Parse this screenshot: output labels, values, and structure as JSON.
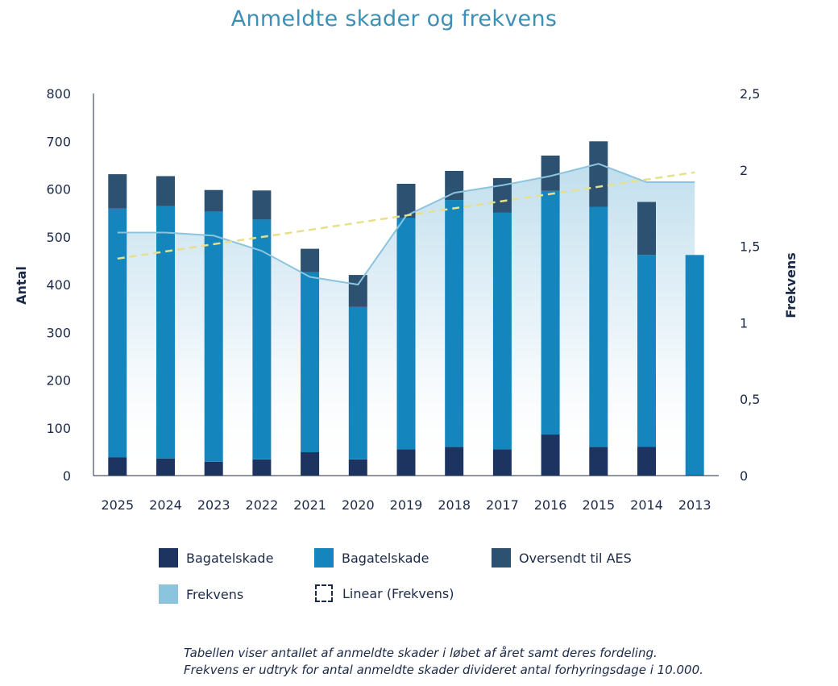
{
  "chart_data": {
    "type": "bar",
    "title": "Anmeldte skader og frekvens",
    "ylabel": "Antal",
    "y2label": "Frekvens",
    "ylim": [
      0,
      800
    ],
    "y2lim": [
      0,
      2.5
    ],
    "yticks": [
      "0",
      "100",
      "200",
      "300",
      "400",
      "500",
      "600",
      "700",
      "800"
    ],
    "y2ticks": [
      "0",
      "0,5",
      "1",
      "1,5",
      "2",
      "2,5"
    ],
    "categories": [
      "2025",
      "2024",
      "2023",
      "2022",
      "2021",
      "2020",
      "2019",
      "2018",
      "2017",
      "2016",
      "2015",
      "2014",
      "2013"
    ],
    "series": [
      {
        "name": "Bagatelskade",
        "kind": "bar-stack",
        "color": "#1d3461",
        "values": [
          38,
          36,
          29,
          34,
          49,
          34,
          55,
          60,
          55,
          86,
          60,
          60,
          0
        ]
      },
      {
        "name": "Bagatelskade",
        "kind": "bar-stack",
        "color": "#1485bd",
        "values": [
          521,
          528,
          524,
          502,
          377,
          319,
          485,
          517,
          496,
          510,
          503,
          402,
          462
        ]
      },
      {
        "name": "Oversendt til AES",
        "kind": "bar-stack",
        "color": "#2d5170",
        "values": [
          72,
          63,
          45,
          61,
          49,
          67,
          71,
          61,
          72,
          74,
          137,
          111,
          0
        ]
      },
      {
        "name": "Frekvens",
        "kind": "area",
        "axis": "y2",
        "color": "#8cc4de",
        "values": [
          1.59,
          1.59,
          1.57,
          1.47,
          1.3,
          1.25,
          1.7,
          1.85,
          1.9,
          1.96,
          2.04,
          1.92,
          1.92
        ]
      },
      {
        "name": "Linear (Frekvens)",
        "kind": "trend",
        "axis": "y2",
        "color": "#e6e08c",
        "values": [
          1.42,
          1.467,
          1.514,
          1.561,
          1.608,
          1.655,
          1.702,
          1.749,
          1.796,
          1.843,
          1.89,
          1.937,
          1.984
        ]
      }
    ],
    "grid": false,
    "legend_position": "bottom"
  },
  "legend": [
    {
      "label": "Bagatelskade",
      "color": "#1d3461",
      "style": "solid"
    },
    {
      "label": "Bagatelskade",
      "color": "#1485bd",
      "style": "solid"
    },
    {
      "label": "Oversendt til AES",
      "color": "#2d5170",
      "style": "solid"
    },
    {
      "label": "Frekvens",
      "color": "#8cc4de",
      "style": "solid"
    },
    {
      "label": "Linear (Frekvens)",
      "color": "#1c2a4a",
      "style": "dashed"
    }
  ],
  "note": {
    "line1": "Tabellen viser antallet af anmeldte skader i løbet af året samt deres fordeling.",
    "line2": "Frekvens er udtryk for antal anmeldte skader divideret antal forhyringsdage i 10.000."
  }
}
